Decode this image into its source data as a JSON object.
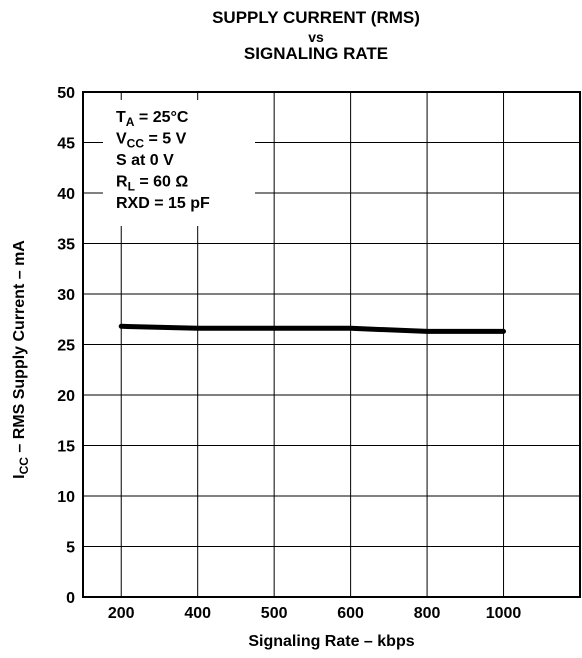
{
  "chart_data": {
    "type": "line",
    "title_line1": "SUPPLY CURRENT (RMS)",
    "title_line2": "vs",
    "title_line3": "SIGNALING RATE",
    "xlabel": "Signaling Rate  – kbps",
    "ylabel_main": "I",
    "ylabel_sub": "CC",
    "ylabel_rest": " – RMS Supply Current – mA",
    "x_ticks": [
      200,
      400,
      500,
      600,
      800,
      1000
    ],
    "y_ticks": [
      0,
      5,
      10,
      15,
      20,
      25,
      30,
      35,
      40,
      45,
      50
    ],
    "ylim": [
      0,
      50
    ],
    "grid": true,
    "series": [
      {
        "x": [
          200,
          400,
          500,
          600,
          800,
          1000
        ],
        "y": [
          26.8,
          26.6,
          26.6,
          26.6,
          26.3,
          26.3
        ]
      }
    ],
    "conditions": [
      {
        "main": "T",
        "sub": "A",
        "rest": " = 25°C"
      },
      {
        "main": "V",
        "sub": "CC",
        "rest": " = 5 V"
      },
      {
        "main": "S at 0 V",
        "sub": "",
        "rest": ""
      },
      {
        "main": "R",
        "sub": "L",
        "rest": " = 60 Ω"
      },
      {
        "main": "RXD = 15 pF",
        "sub": "",
        "rest": ""
      }
    ]
  }
}
